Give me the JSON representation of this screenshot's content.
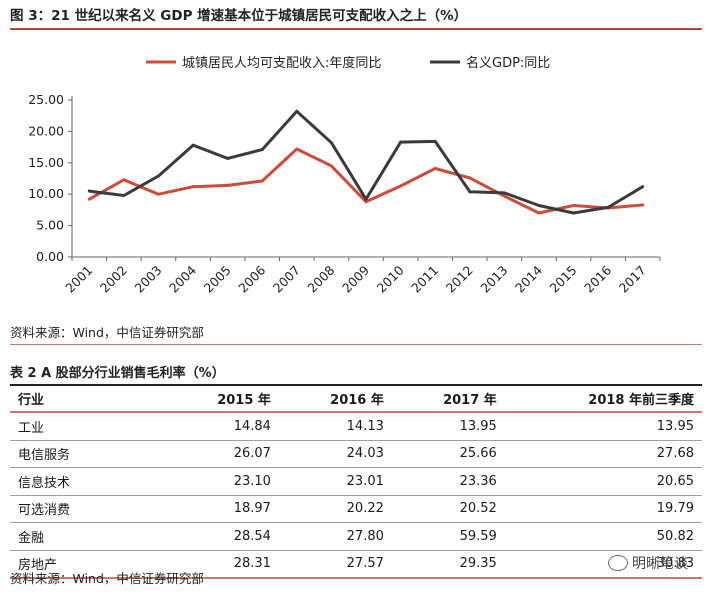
{
  "figure_title": "图 3：21 世纪以来名义 GDP 增速基本位于城镇居民可支配收入之上（%）",
  "figure_source": "资料来源：Wind，中信证券研究部",
  "chart_data": {
    "type": "line",
    "x": [
      "2001",
      "2002",
      "2003",
      "2004",
      "2005",
      "2006",
      "2007",
      "2008",
      "2009",
      "2010",
      "2011",
      "2012",
      "2013",
      "2014",
      "2015",
      "2016",
      "2017"
    ],
    "yticks": [
      "0.00",
      "5.00",
      "10.00",
      "15.00",
      "20.00",
      "25.00"
    ],
    "ylim": [
      0,
      25
    ],
    "legend_position": "top",
    "grid": false,
    "series": [
      {
        "name": "城镇居民人均可支配收入:年度同比",
        "color": "#cc4b3a",
        "values": [
          9.2,
          12.3,
          10.0,
          11.2,
          11.4,
          12.1,
          17.2,
          14.5,
          8.8,
          11.3,
          14.1,
          12.6,
          9.7,
          7.0,
          8.2,
          7.8,
          8.3
        ]
      },
      {
        "name": "名义GDP:同比",
        "color": "#3a3a3a",
        "values": [
          10.5,
          9.8,
          12.9,
          17.8,
          15.7,
          17.1,
          23.2,
          18.2,
          9.2,
          18.3,
          18.4,
          10.4,
          10.2,
          8.2,
          7.0,
          7.9,
          11.2
        ]
      }
    ]
  },
  "table": {
    "title": "表 2 A 股部分行业销售毛利率（%）",
    "headers": [
      "行业",
      "2015 年",
      "2016 年",
      "2017 年",
      "2018 年前三季度"
    ],
    "rows": [
      [
        "工业",
        "14.84",
        "14.13",
        "13.95",
        "13.95"
      ],
      [
        "电信服务",
        "26.07",
        "24.03",
        "25.66",
        "27.68"
      ],
      [
        "信息技术",
        "23.10",
        "23.01",
        "23.36",
        "20.65"
      ],
      [
        "可选消费",
        "18.97",
        "20.22",
        "20.52",
        "19.79"
      ],
      [
        "金融",
        "28.54",
        "27.80",
        "59.59",
        "50.82"
      ],
      [
        "房地产",
        "28.31",
        "27.57",
        "29.35",
        "30.83"
      ]
    ],
    "source": "资料来源：Wind，中信证券研究部"
  },
  "watermark": "明晰笔谈"
}
